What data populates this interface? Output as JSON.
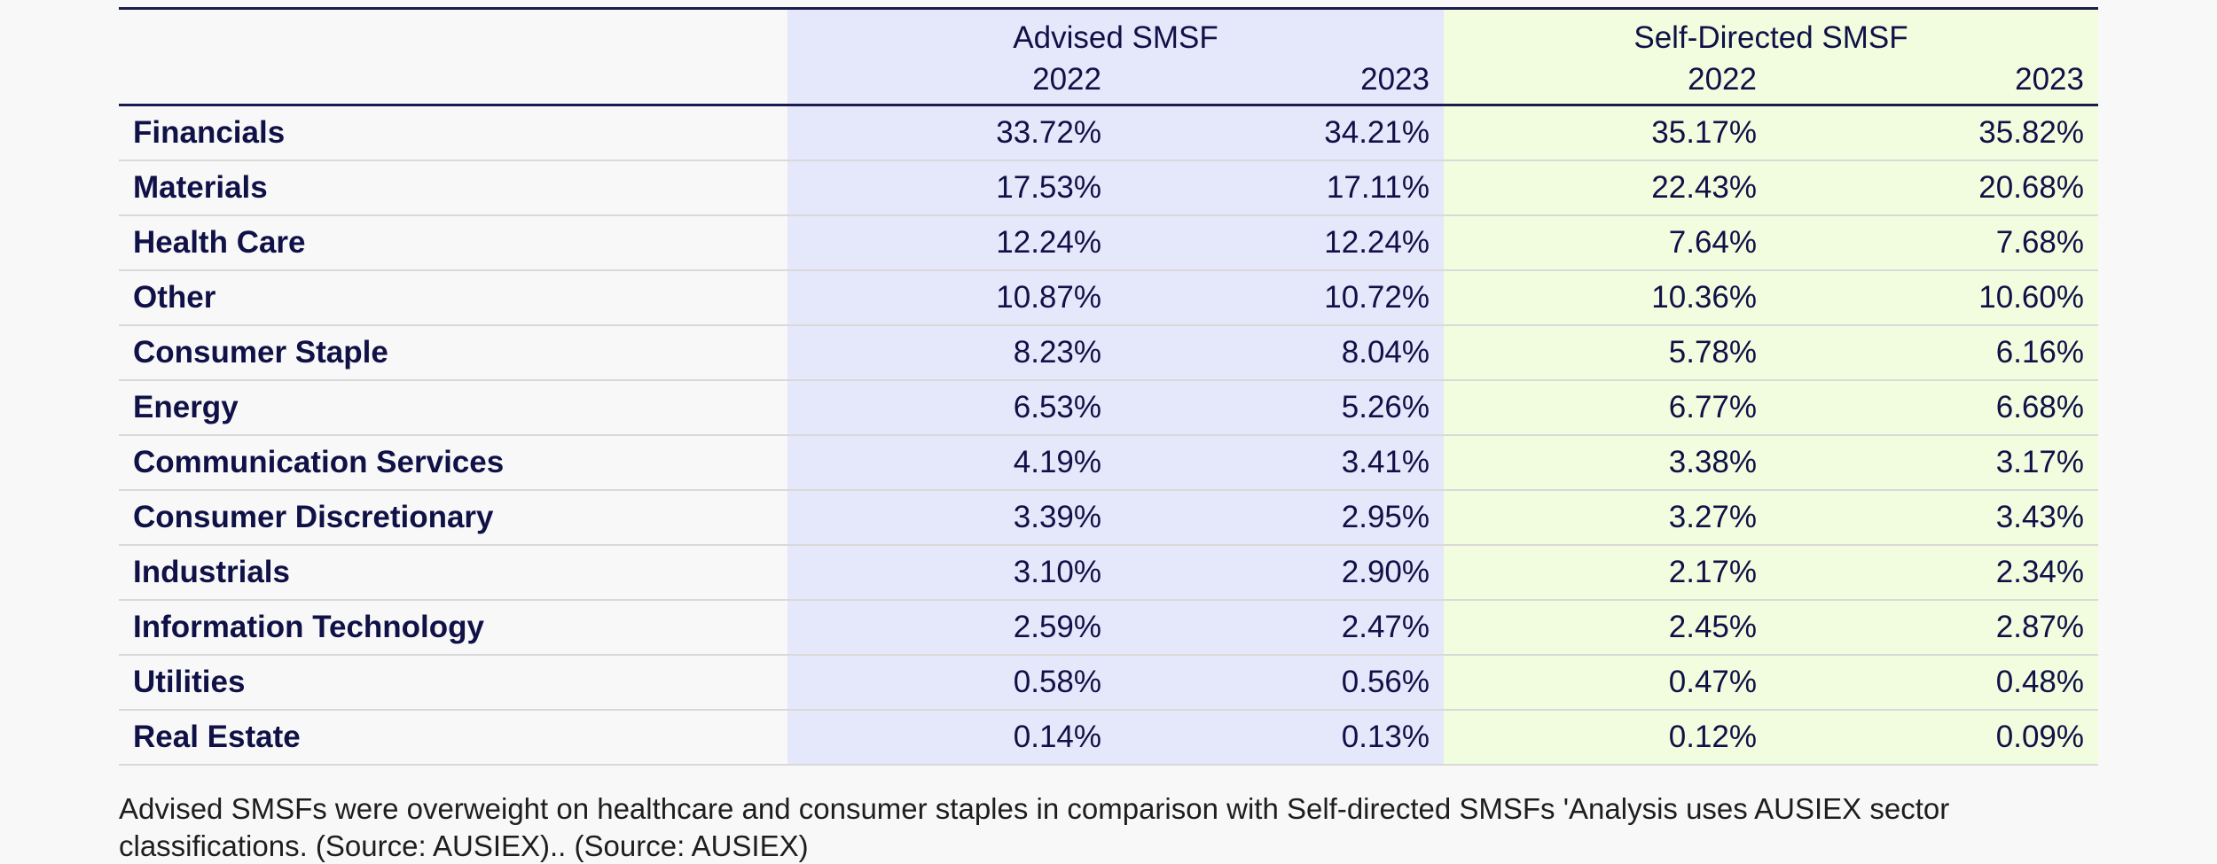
{
  "chart_data": {
    "type": "table",
    "groups": [
      {
        "name": "Advised SMSF",
        "years": [
          "2022",
          "2023"
        ],
        "color": "#e5e7fb"
      },
      {
        "name": "Self-Directed SMSF",
        "years": [
          "2022",
          "2023"
        ],
        "color": "#f1fdde"
      }
    ],
    "columns": [
      "Advised SMSF 2022",
      "Advised SMSF 2023",
      "Self-Directed SMSF 2022",
      "Self-Directed SMSF 2023"
    ],
    "rows": [
      {
        "sector": "Financials",
        "values": [
          "33.72%",
          "34.21%",
          "35.17%",
          "35.82%"
        ]
      },
      {
        "sector": "Materials",
        "values": [
          "17.53%",
          "17.11%",
          "22.43%",
          "20.68%"
        ]
      },
      {
        "sector": "Health Care",
        "values": [
          "12.24%",
          "12.24%",
          "7.64%",
          "7.68%"
        ]
      },
      {
        "sector": "Other",
        "values": [
          "10.87%",
          "10.72%",
          "10.36%",
          "10.60%"
        ]
      },
      {
        "sector": "Consumer Staple",
        "values": [
          "8.23%",
          "8.04%",
          "5.78%",
          "6.16%"
        ]
      },
      {
        "sector": "Energy",
        "values": [
          "6.53%",
          "5.26%",
          "6.77%",
          "6.68%"
        ]
      },
      {
        "sector": "Communication Services",
        "values": [
          "4.19%",
          "3.41%",
          "3.38%",
          "3.17%"
        ]
      },
      {
        "sector": "Consumer Discretionary",
        "values": [
          "3.39%",
          "2.95%",
          "3.27%",
          "3.43%"
        ]
      },
      {
        "sector": "Industrials",
        "values": [
          "3.10%",
          "2.90%",
          "2.17%",
          "2.34%"
        ]
      },
      {
        "sector": "Information Technology",
        "values": [
          "2.59%",
          "2.47%",
          "2.45%",
          "2.87%"
        ]
      },
      {
        "sector": "Utilities",
        "values": [
          "0.58%",
          "0.56%",
          "0.47%",
          "0.48%"
        ]
      },
      {
        "sector": "Real Estate",
        "values": [
          "0.14%",
          "0.13%",
          "0.12%",
          "0.09%"
        ]
      }
    ],
    "caption": "Advised SMSFs were overweight on healthcare and consumer staples in comparison with Self-directed SMSFs 'Analysis uses AUSIEX sector classifications. (Source: AUSIEX).. (Source: AUSIEX)"
  },
  "colors": {
    "text": "#0f1147",
    "rule": "#1a1c4e",
    "advised_bg": "#e5e7fb",
    "self_bg": "#f1fdde"
  }
}
